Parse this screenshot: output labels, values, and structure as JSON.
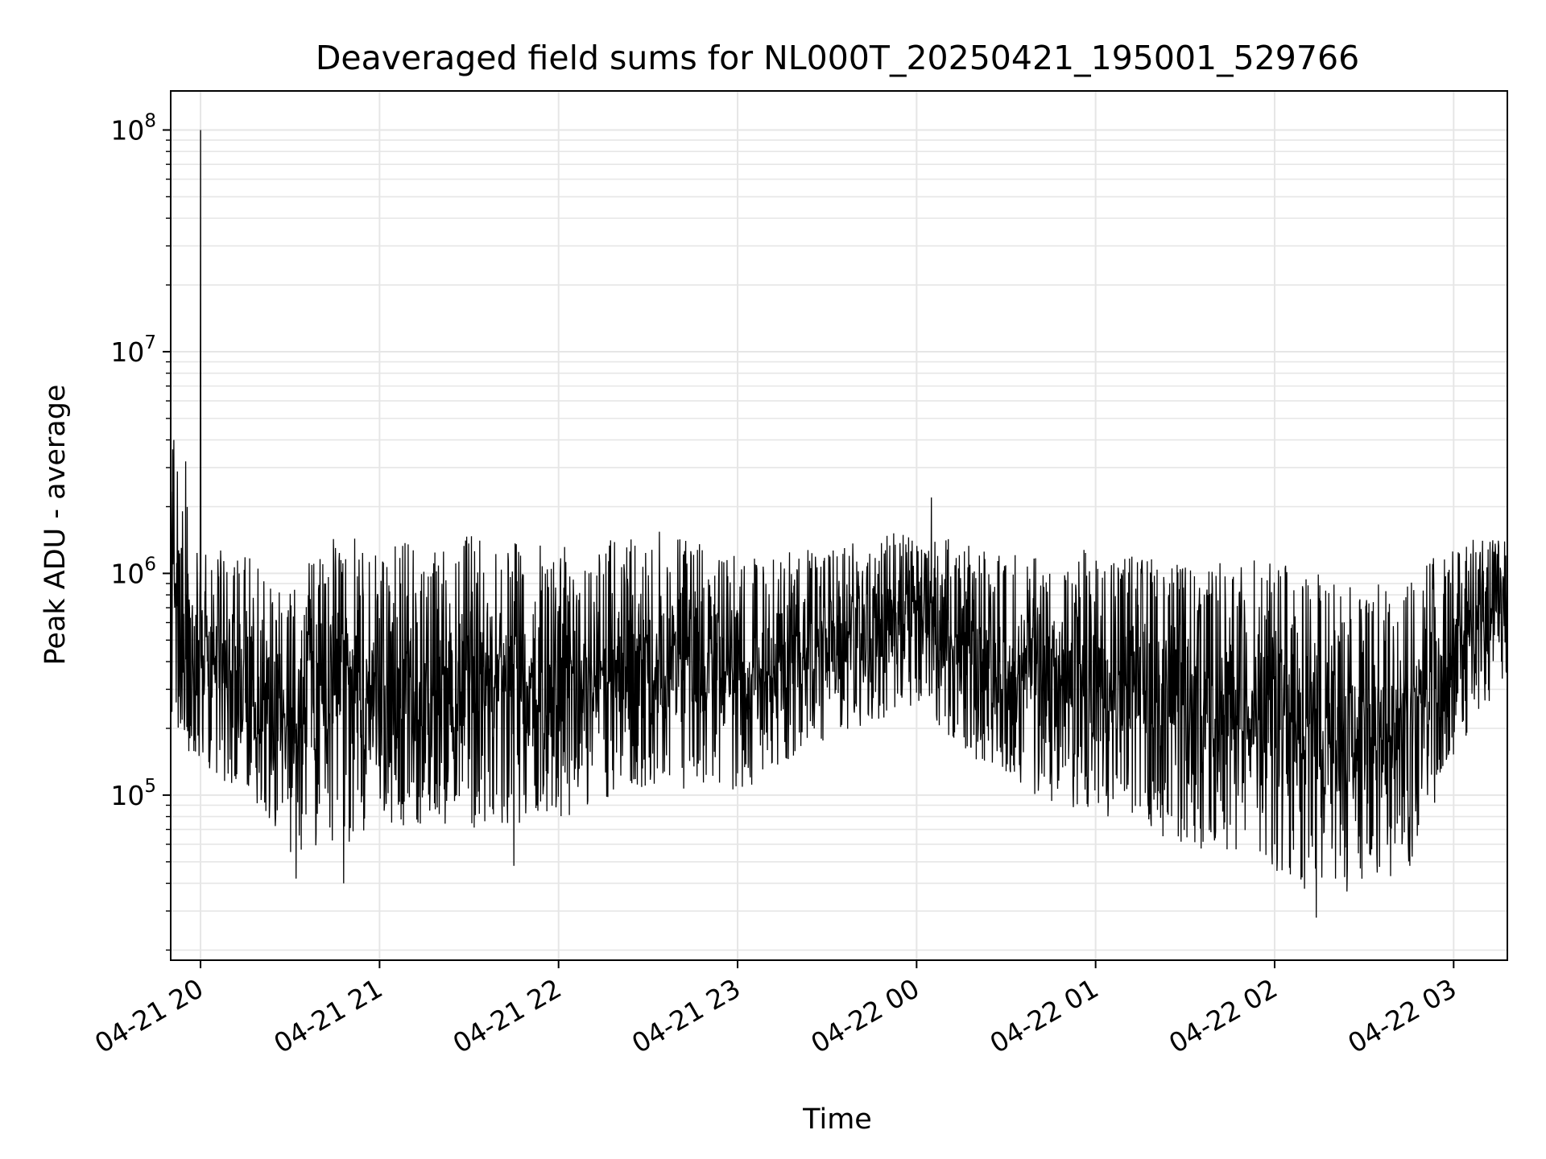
{
  "chart_data": {
    "type": "line",
    "title": "Deaveraged field sums for NL000T_20250421_195001_529766",
    "xlabel": "Time",
    "ylabel": "Peak ADU - average",
    "yscale": "log",
    "ylim": [
      18000,
      150000000
    ],
    "xlim": [
      "2025-04-21 19:50",
      "2025-04-22 03:18"
    ],
    "grid": true,
    "x_ticks": [
      "04-21 20",
      "04-21 21",
      "04-21 22",
      "04-21 23",
      "04-22 00",
      "04-22 01",
      "04-22 02",
      "04-22 03"
    ],
    "y_ticks": [
      {
        "base": "10",
        "exp": "5",
        "value": 100000
      },
      {
        "base": "10",
        "exp": "6",
        "value": 1000000
      },
      {
        "base": "10",
        "exp": "7",
        "value": 10000000
      },
      {
        "base": "10",
        "exp": "8",
        "value": 100000000
      }
    ],
    "line_color": "#000000",
    "envelope": [
      {
        "t": "2025-04-21 19:50",
        "low": 230000,
        "high": 4000000
      },
      {
        "t": "2025-04-21 20:00",
        "low": 120000,
        "high": 1300000
      },
      {
        "t": "2025-04-21 20:15",
        "low": 110000,
        "high": 1300000
      },
      {
        "t": "2025-04-21 20:30",
        "low": 55000,
        "high": 900000
      },
      {
        "t": "2025-04-21 20:45",
        "low": 60000,
        "high": 1500000
      },
      {
        "t": "2025-04-21 21:00",
        "low": 65000,
        "high": 1400000
      },
      {
        "t": "2025-04-21 21:30",
        "low": 70000,
        "high": 1500000
      },
      {
        "t": "2025-04-21 22:00",
        "low": 75000,
        "high": 1300000
      },
      {
        "t": "2025-04-21 22:30",
        "low": 110000,
        "high": 1600000
      },
      {
        "t": "2025-04-21 23:00",
        "low": 100000,
        "high": 1200000
      },
      {
        "t": "2025-04-21 23:30",
        "low": 180000,
        "high": 1300000
      },
      {
        "t": "2025-04-22 00:00",
        "low": 250000,
        "high": 1600000
      },
      {
        "t": "2025-04-22 00:30",
        "low": 110000,
        "high": 1200000
      },
      {
        "t": "2025-04-22 01:00",
        "low": 80000,
        "high": 1300000
      },
      {
        "t": "2025-04-22 01:30",
        "low": 60000,
        "high": 1100000
      },
      {
        "t": "2025-04-22 02:00",
        "low": 45000,
        "high": 1200000
      },
      {
        "t": "2025-04-22 02:15",
        "low": 33000,
        "high": 1000000
      },
      {
        "t": "2025-04-22 02:45",
        "low": 45000,
        "high": 900000
      },
      {
        "t": "2025-04-22 03:00",
        "low": 150000,
        "high": 1500000
      },
      {
        "t": "2025-04-22 03:18",
        "low": 350000,
        "high": 1500000
      }
    ],
    "notable_points": [
      {
        "t": "2025-04-21 19:51",
        "value": 4000000
      },
      {
        "t": "2025-04-21 19:55",
        "value": 3200000
      },
      {
        "t": "2025-04-21 20:00",
        "value": 100000000
      },
      {
        "t": "2025-04-21 20:32",
        "value": 42000
      },
      {
        "t": "2025-04-21 20:48",
        "value": 40000
      },
      {
        "t": "2025-04-21 21:45",
        "value": 48000
      },
      {
        "t": "2025-04-22 00:05",
        "value": 2200000
      },
      {
        "t": "2025-04-22 02:14",
        "value": 28000
      }
    ]
  }
}
